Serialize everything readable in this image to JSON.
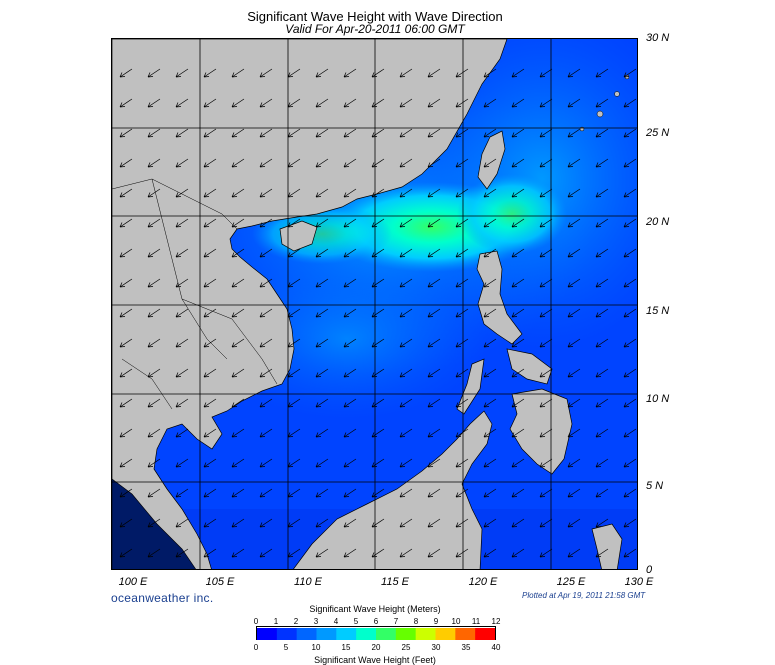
{
  "title": "Significant Wave Height with Wave Direction",
  "subtitle": "Valid For Apr-20-2011 06:00 GMT",
  "company": "oceanweather inc.",
  "plotted": "Plotted at Apr 19, 2011 21:58 GMT",
  "lat_labels": [
    "30 N",
    "25 N",
    "20 N",
    "15 N",
    "10 N",
    "5 N",
    "0"
  ],
  "lon_labels": [
    "100 E",
    "105 E",
    "110 E",
    "115 E",
    "120 E",
    "125 E",
    "130 E"
  ],
  "colorbar": {
    "title_meters": "Significant Wave Height (Meters)",
    "title_feet": "Significant Wave Height (Feet)",
    "meter_ticks": [
      "0",
      "1",
      "2",
      "3",
      "4",
      "5",
      "6",
      "7",
      "8",
      "9",
      "10",
      "11",
      "12"
    ],
    "feet_ticks": [
      "0",
      "5",
      "10",
      "15",
      "20",
      "25",
      "30",
      "35",
      "40"
    ],
    "colors": [
      "#0000ff",
      "#0033ff",
      "#0066ff",
      "#0099ff",
      "#00ccff",
      "#00ffcc",
      "#33ff66",
      "#66ff00",
      "#ccff00",
      "#ffcc00",
      "#ff6600",
      "#ff0000"
    ]
  },
  "map": {
    "land_color": "#c0c0c0",
    "wave_direction": "southwest"
  }
}
